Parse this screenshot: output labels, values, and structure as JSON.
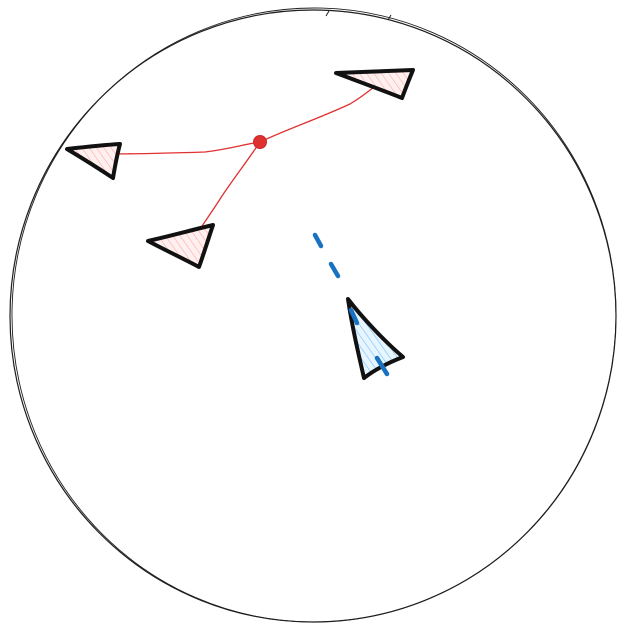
{
  "colors": {
    "background": "#ffffff",
    "boundary_stroke": "#1e1e1e",
    "outline": "#111111",
    "group_line": "#e03131",
    "group_fill": "#ffc9c9",
    "group_centroid": "#e03131",
    "agent_fill": "#a5d8ff",
    "agent_hatch": "#74c0fc",
    "heading_dash": "#1971c2"
  },
  "scene": {
    "boundary_shape": "circle",
    "style": "hand-drawn sketch",
    "group_triangle_count": 3,
    "agent_triangle_count": 1
  }
}
